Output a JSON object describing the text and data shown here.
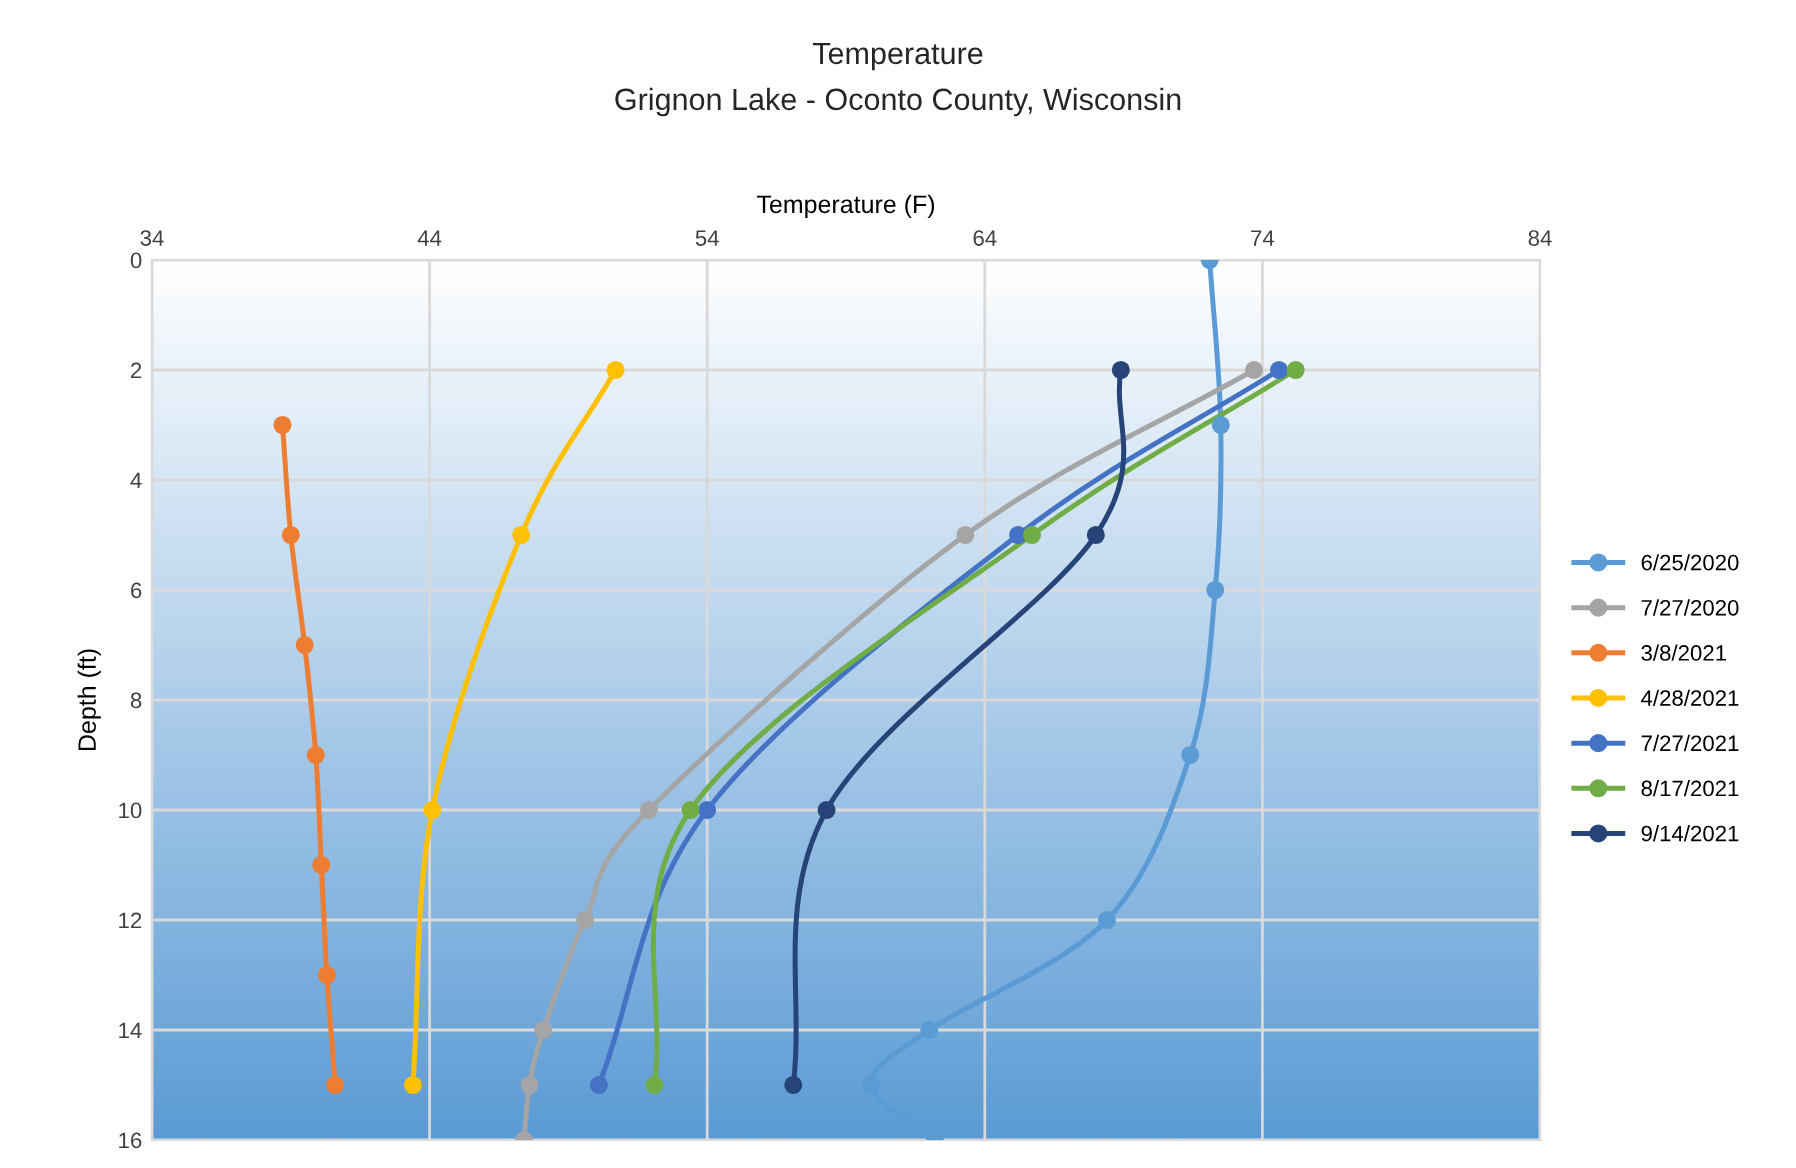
{
  "chart_data": {
    "type": "line",
    "title": "Temperature",
    "subtitle": "Grignon Lake - Oconto County, Wisconsin",
    "xlabel": "Temperature (F)",
    "ylabel": "Depth (ft)",
    "xlim": [
      34,
      84
    ],
    "xticks": [
      34,
      44,
      54,
      64,
      74,
      84
    ],
    "ylim": [
      16,
      0
    ],
    "yticks": [
      0,
      2,
      4,
      6,
      8,
      10,
      12,
      14,
      16
    ],
    "grid": true,
    "legend": "right",
    "marker": "circle",
    "line_style": "solid",
    "series": [
      {
        "name": "6/25/2020",
        "color": "#5b9bd5",
        "x": [
          72.1,
          72.5,
          72.3,
          71.4,
          68.4,
          62.0,
          59.9,
          62.2
        ],
        "values": [
          0,
          3,
          6,
          9,
          12,
          14,
          15,
          16
        ]
      },
      {
        "name": "7/27/2020",
        "color": "#a5a5a5",
        "x": [
          73.7,
          63.3,
          51.9,
          49.6,
          48.1,
          47.6,
          47.4
        ],
        "values": [
          2,
          5,
          10,
          12,
          14,
          15,
          16
        ]
      },
      {
        "name": "3/8/2021",
        "color": "#ed7d31",
        "x": [
          38.7,
          39.0,
          39.5,
          39.9,
          40.1,
          40.3,
          40.6
        ],
        "values": [
          3,
          5,
          7,
          9,
          11,
          13,
          15
        ]
      },
      {
        "name": "4/28/2021",
        "color": "#ffc000",
        "x": [
          50.7,
          47.3,
          44.1,
          43.4
        ],
        "values": [
          2,
          5,
          10,
          15
        ]
      },
      {
        "name": "7/27/2021",
        "color": "#4472c4",
        "x": [
          74.6,
          65.2,
          54.0,
          50.1
        ],
        "values": [
          2,
          5,
          10,
          15
        ]
      },
      {
        "name": "8/17/2021",
        "color": "#70ad47",
        "x": [
          75.2,
          65.7,
          53.4,
          52.1
        ],
        "values": [
          2,
          5,
          10,
          15
        ]
      },
      {
        "name": "9/14/2021",
        "color": "#264478",
        "x": [
          68.9,
          68.0,
          58.3,
          57.1
        ],
        "values": [
          2,
          5,
          10,
          15
        ]
      }
    ]
  }
}
